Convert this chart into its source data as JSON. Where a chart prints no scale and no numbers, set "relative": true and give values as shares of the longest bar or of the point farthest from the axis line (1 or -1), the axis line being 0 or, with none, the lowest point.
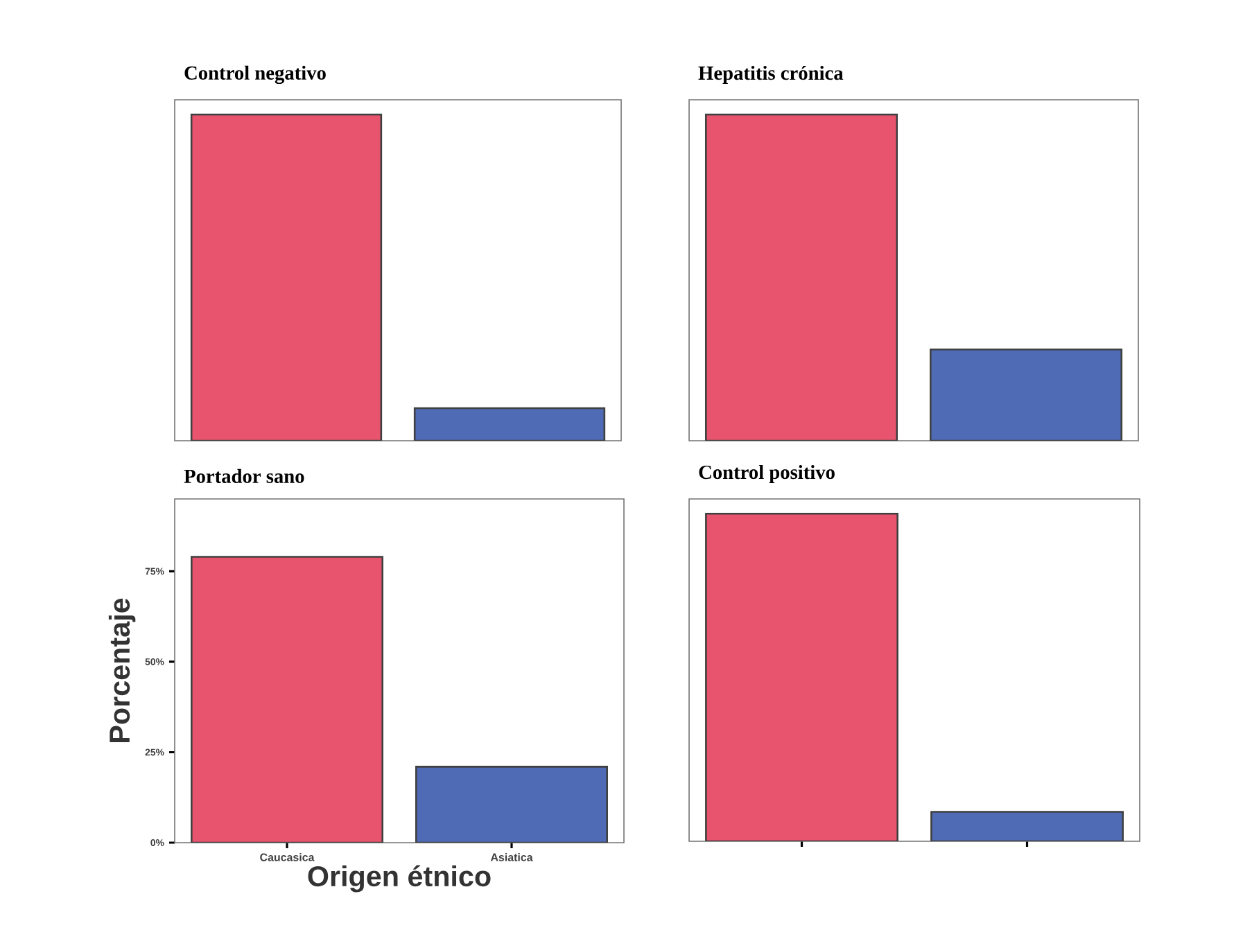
{
  "chart_data": [
    {
      "type": "bar",
      "title": "Control negativo",
      "categories": [
        null,
        null
      ],
      "values": [
        1,
        0.1
      ],
      "colors": [
        "#e8546e",
        "#4f6bb5"
      ],
      "relative": true
    },
    {
      "type": "bar",
      "title": "Hepatitis crónica",
      "categories": [
        null,
        null
      ],
      "values": [
        1,
        0.28
      ],
      "colors": [
        "#e8546e",
        "#4f6bb5"
      ],
      "relative": true
    },
    {
      "type": "bar",
      "title": "Portador sano",
      "xlabel": "Origen étnico",
      "ylabel": "Porcentaje",
      "categories": [
        "Caucasica",
        "Asiatica"
      ],
      "values": [
        79,
        21
      ],
      "colors": [
        "#e8546e",
        "#4f6bb5"
      ],
      "ylim": [
        0,
        95
      ],
      "yticks": [
        {
          "value": 0,
          "label": "0%"
        },
        {
          "value": 25,
          "label": "25%"
        },
        {
          "value": 50,
          "label": "50%"
        },
        {
          "value": 75,
          "label": "75%"
        }
      ]
    },
    {
      "type": "bar",
      "title": "Control positivo",
      "categories": [
        null,
        null
      ],
      "values": [
        1,
        0.09
      ],
      "colors": [
        "#e8546e",
        "#4f6bb5"
      ],
      "relative": true
    }
  ]
}
